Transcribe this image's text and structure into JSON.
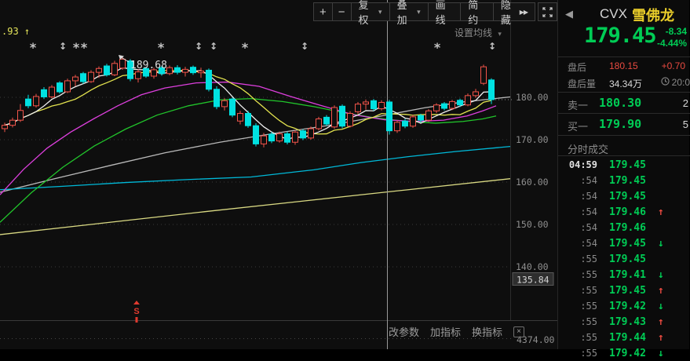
{
  "toolbar": {
    "zoom_in": "+",
    "zoom_out": "−",
    "adjust_label": "复权",
    "overlay_label": "叠加",
    "draw_label": "画线",
    "simple_label": "简约",
    "hide_label": "隐藏"
  },
  "icons": {
    "caret_down": "▾",
    "double_right": "▶▶",
    "back": "◀",
    "close": "×",
    "arrow_up": "↑",
    "arrow_down": "↓",
    "asterisk": "*",
    "updown": "↕"
  },
  "chart": {
    "ma_settings_label": "设置均线",
    "left_price_label": ".93 ↑",
    "peak_annotation": "189.68",
    "event_marker_letter": "S",
    "bottom_menu": [
      "改参数",
      "加指标",
      "换指标"
    ],
    "bottom_scale_label": "4374.00",
    "y_ticks": [
      {
        "label": "180.00",
        "value": 180
      },
      {
        "label": "170.00",
        "value": 170
      },
      {
        "label": "160.00",
        "value": 160
      },
      {
        "label": "150.00",
        "value": 150
      },
      {
        "label": "140.00",
        "value": 140
      }
    ],
    "y_highlight": {
      "label": "135.84",
      "value": 135.84
    },
    "crosshair_x": 493,
    "last_price": 179.45,
    "markers": [
      {
        "x": 42,
        "type": "star"
      },
      {
        "x": 80,
        "type": "updown"
      },
      {
        "x": 97,
        "type": "star"
      },
      {
        "x": 107,
        "type": "star"
      },
      {
        "x": 205,
        "type": "star"
      },
      {
        "x": 253,
        "type": "updown"
      },
      {
        "x": 272,
        "type": "updown"
      },
      {
        "x": 312,
        "type": "star"
      },
      {
        "x": 388,
        "type": "updown"
      },
      {
        "x": 557,
        "type": "star"
      },
      {
        "x": 627,
        "type": "updown"
      }
    ],
    "split_marker_x": 174,
    "colors": {
      "up": "#f2544a",
      "down": "#00e1e1",
      "ma5": "#eeeeee",
      "ma10": "#e3e34f",
      "ma20": "#dd3fdd",
      "ma30": "#21c52b",
      "ma_long_cyan": "#00b9d8",
      "ma_long_gray": "#b9b9b9",
      "ma_long_yellow": "#d9d983",
      "grid": "#3a3a3a",
      "axis_text": "#8f8f8f",
      "crosshair": "#999999",
      "annotation": "#dcdcdc",
      "event_red": "#e03a2f",
      "label_yellow": "#e3e35a"
    },
    "candles": [
      [
        172.6,
        174.0,
        171.8,
        173.4
      ],
      [
        173.4,
        175.2,
        172.9,
        174.6
      ],
      [
        174.6,
        178.4,
        174.2,
        176.9
      ],
      [
        179.6,
        180.6,
        177.4,
        178.0
      ],
      [
        178.0,
        180.8,
        177.6,
        180.2
      ],
      [
        181.8,
        182.4,
        179.6,
        180.1
      ],
      [
        180.1,
        182.9,
        179.8,
        182.4
      ],
      [
        183.4,
        183.8,
        180.9,
        181.3
      ],
      [
        181.3,
        184.4,
        181.0,
        183.9
      ],
      [
        183.9,
        185.3,
        182.6,
        184.8
      ],
      [
        185.6,
        186.0,
        183.2,
        183.7
      ],
      [
        183.7,
        186.4,
        183.4,
        185.9
      ],
      [
        185.9,
        187.3,
        184.6,
        186.8
      ],
      [
        187.4,
        187.9,
        184.9,
        185.3
      ],
      [
        185.3,
        188.6,
        185.0,
        188.0
      ],
      [
        186.9,
        189.68,
        186.5,
        189.0
      ],
      [
        188.6,
        189.0,
        183.8,
        184.4
      ],
      [
        184.4,
        186.6,
        183.5,
        186.0
      ],
      [
        186.8,
        187.2,
        184.6,
        185.0
      ],
      [
        185.0,
        187.0,
        184.4,
        186.5
      ],
      [
        187.0,
        187.4,
        185.1,
        185.6
      ],
      [
        185.6,
        187.5,
        185.2,
        187.0
      ],
      [
        187.0,
        187.6,
        185.4,
        185.9
      ],
      [
        185.9,
        187.2,
        184.9,
        186.6
      ],
      [
        187.1,
        187.5,
        185.3,
        185.8
      ],
      [
        185.8,
        187.0,
        184.6,
        186.2
      ],
      [
        186.4,
        186.8,
        181.4,
        181.9
      ],
      [
        181.9,
        182.6,
        177.2,
        177.8
      ],
      [
        177.8,
        179.8,
        176.9,
        179.2
      ],
      [
        179.6,
        179.9,
        175.3,
        175.8
      ],
      [
        174.4,
        176.8,
        173.6,
        176.2
      ],
      [
        176.2,
        176.8,
        172.8,
        173.3
      ],
      [
        173.3,
        173.9,
        168.4,
        169.0
      ],
      [
        169.0,
        171.6,
        168.2,
        170.9
      ],
      [
        171.3,
        171.8,
        169.2,
        169.7
      ],
      [
        169.7,
        171.9,
        169.3,
        171.4
      ],
      [
        171.4,
        171.9,
        168.9,
        169.4
      ],
      [
        169.4,
        172.3,
        168.8,
        171.8
      ],
      [
        172.1,
        172.5,
        169.9,
        170.4
      ],
      [
        170.4,
        173.1,
        170.0,
        172.6
      ],
      [
        172.6,
        175.4,
        172.2,
        174.9
      ],
      [
        175.3,
        175.8,
        173.2,
        173.7
      ],
      [
        173.0,
        178.1,
        172.6,
        177.6
      ],
      [
        177.9,
        178.3,
        172.7,
        173.2
      ],
      [
        173.2,
        176.7,
        172.9,
        176.2
      ],
      [
        176.6,
        178.9,
        176.0,
        178.4
      ],
      [
        178.4,
        179.5,
        177.1,
        178.9
      ],
      [
        179.2,
        179.6,
        176.8,
        177.3
      ],
      [
        177.3,
        179.3,
        176.9,
        178.8
      ],
      [
        178.9,
        179.4,
        171.2,
        172.1
      ],
      [
        172.1,
        174.6,
        171.6,
        174.1
      ],
      [
        174.4,
        174.9,
        172.7,
        173.2
      ],
      [
        173.2,
        175.9,
        172.8,
        175.4
      ],
      [
        175.7,
        176.1,
        174.1,
        174.6
      ],
      [
        174.6,
        177.2,
        174.2,
        176.8
      ],
      [
        176.8,
        178.6,
        176.3,
        178.2
      ],
      [
        178.5,
        178.9,
        176.9,
        177.4
      ],
      [
        177.4,
        179.4,
        177.0,
        179.0
      ],
      [
        179.3,
        179.7,
        177.7,
        178.2
      ],
      [
        178.2,
        180.9,
        177.9,
        180.4
      ],
      [
        180.4,
        182.0,
        179.9,
        181.3
      ],
      [
        183.3,
        187.7,
        182.9,
        187.2
      ],
      [
        184.1,
        184.5,
        178.4,
        179.45
      ]
    ],
    "ma_long": {
      "ma20_points": [
        [
          0,
          157
        ],
        [
          30,
          163
        ],
        [
          60,
          168
        ],
        [
          90,
          171.8
        ],
        [
          120,
          175
        ],
        [
          150,
          178
        ],
        [
          180,
          180.6
        ],
        [
          210,
          182.2
        ],
        [
          250,
          183.4
        ],
        [
          290,
          183.6
        ],
        [
          330,
          182.6
        ],
        [
          370,
          180.2
        ],
        [
          410,
          178
        ],
        [
          450,
          175.9
        ],
        [
          490,
          174.7
        ],
        [
          530,
          174.3
        ],
        [
          565,
          174.6
        ],
        [
          595,
          175.6
        ],
        [
          615,
          176.8
        ],
        [
          632,
          178
        ]
      ],
      "ma30_points": [
        [
          0,
          150.5
        ],
        [
          40,
          157.5
        ],
        [
          80,
          163.5
        ],
        [
          120,
          168.5
        ],
        [
          160,
          172.5
        ],
        [
          200,
          175.8
        ],
        [
          240,
          178
        ],
        [
          280,
          179.4
        ],
        [
          320,
          179.7
        ],
        [
          360,
          179
        ],
        [
          400,
          177.8
        ],
        [
          440,
          176.3
        ],
        [
          480,
          175.1
        ],
        [
          520,
          174.3
        ],
        [
          555,
          173.9
        ],
        [
          590,
          174.3
        ],
        [
          615,
          174.9
        ],
        [
          632,
          175.6
        ]
      ],
      "cyan_points": [
        [
          0,
          158.2
        ],
        [
          80,
          159
        ],
        [
          160,
          159.9
        ],
        [
          240,
          160.6
        ],
        [
          320,
          161.2
        ],
        [
          400,
          162.9
        ],
        [
          460,
          164.6
        ],
        [
          520,
          166
        ],
        [
          580,
          167.2
        ],
        [
          650,
          168.4
        ]
      ],
      "gray_points": [
        [
          0,
          157.6
        ],
        [
          70,
          160.8
        ],
        [
          140,
          163.9
        ],
        [
          210,
          166.9
        ],
        [
          280,
          169.4
        ],
        [
          350,
          171.5
        ],
        [
          420,
          173.4
        ],
        [
          480,
          175.4
        ],
        [
          540,
          177.5
        ],
        [
          590,
          178.9
        ],
        [
          650,
          180.1
        ]
      ],
      "yellow_points": [
        [
          0,
          147.6
        ],
        [
          130,
          150.3
        ],
        [
          260,
          153
        ],
        [
          390,
          155.6
        ],
        [
          520,
          158.2
        ],
        [
          650,
          160.8
        ]
      ]
    }
  },
  "quote": {
    "symbol": "CVX",
    "name": "雪佛龙",
    "price": "179.45",
    "change": "-8.34",
    "change_pct": "-4.44%",
    "afterhours_label": "盘后",
    "afterhours_price": "180.15",
    "afterhours_change": "+0.70",
    "afterhours_vol_label": "盘后量",
    "afterhours_vol": "34.34万",
    "afterhours_time": "20:0",
    "ask_label": "卖一",
    "ask_price": "180.30",
    "ask_size": "2",
    "bid_label": "买一",
    "bid_price": "179.90",
    "bid_size": "5",
    "tape_title": "分时成交"
  },
  "tape": {
    "rows": [
      {
        "time": "04:59",
        "price": "179.45",
        "dir": ""
      },
      {
        "time": ":54",
        "price": "179.45",
        "dir": ""
      },
      {
        "time": ":54",
        "price": "179.45",
        "dir": ""
      },
      {
        "time": ":54",
        "price": "179.46",
        "dir": "up"
      },
      {
        "time": ":54",
        "price": "179.46",
        "dir": ""
      },
      {
        "time": ":54",
        "price": "179.45",
        "dir": "down"
      },
      {
        "time": ":55",
        "price": "179.45",
        "dir": ""
      },
      {
        "time": ":55",
        "price": "179.41",
        "dir": "down"
      },
      {
        "time": ":55",
        "price": "179.45",
        "dir": "up"
      },
      {
        "time": ":55",
        "price": "179.42",
        "dir": "down"
      },
      {
        "time": ":55",
        "price": "179.43",
        "dir": "up"
      },
      {
        "time": ":55",
        "price": "179.44",
        "dir": "up"
      },
      {
        "time": ":55",
        "price": "179.42",
        "dir": "down"
      }
    ]
  }
}
